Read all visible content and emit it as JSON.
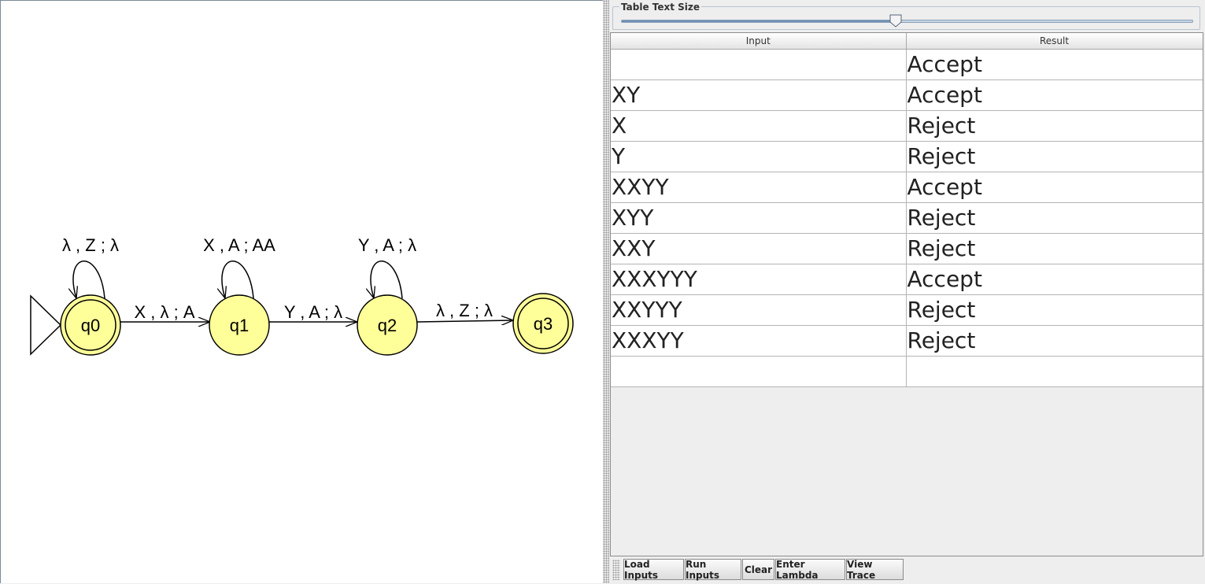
{
  "automaton": {
    "states": [
      {
        "id": "q0",
        "label": "q0",
        "initial": true,
        "final": true
      },
      {
        "id": "q1",
        "label": "q1",
        "initial": false,
        "final": false
      },
      {
        "id": "q2",
        "label": "q2",
        "initial": false,
        "final": false
      },
      {
        "id": "q3",
        "label": "q3",
        "initial": false,
        "final": true
      }
    ],
    "transitions": [
      {
        "from": "q0",
        "to": "q0",
        "label": "λ , Z ; λ"
      },
      {
        "from": "q0",
        "to": "q1",
        "label": "X , λ ; A"
      },
      {
        "from": "q1",
        "to": "q1",
        "label": "X , A ; AA"
      },
      {
        "from": "q1",
        "to": "q2",
        "label": "Y , A ; λ"
      },
      {
        "from": "q2",
        "to": "q2",
        "label": "Y , A ; λ"
      },
      {
        "from": "q2",
        "to": "q3",
        "label": "λ , Z ; λ"
      }
    ],
    "state_fill": "#ffff99"
  },
  "text_size": {
    "label": "Table Text Size",
    "value_fraction": 0.48
  },
  "table": {
    "headers": {
      "input": "Input",
      "result": "Result"
    },
    "rows": [
      {
        "input": "",
        "result": "Accept"
      },
      {
        "input": "XY",
        "result": "Accept"
      },
      {
        "input": "X",
        "result": "Reject"
      },
      {
        "input": "Y",
        "result": "Reject"
      },
      {
        "input": "XXYY",
        "result": "Accept"
      },
      {
        "input": "XYY",
        "result": "Reject"
      },
      {
        "input": "XXY",
        "result": "Reject"
      },
      {
        "input": "XXXYYY",
        "result": "Accept"
      },
      {
        "input": "XXYYY",
        "result": "Reject"
      },
      {
        "input": "XXXYY",
        "result": "Reject"
      },
      {
        "input": "",
        "result": ""
      }
    ]
  },
  "buttons": {
    "load": "Load Inputs",
    "run": "Run Inputs",
    "clear": "Clear",
    "lambda": "Enter Lambda",
    "trace": "View Trace"
  }
}
